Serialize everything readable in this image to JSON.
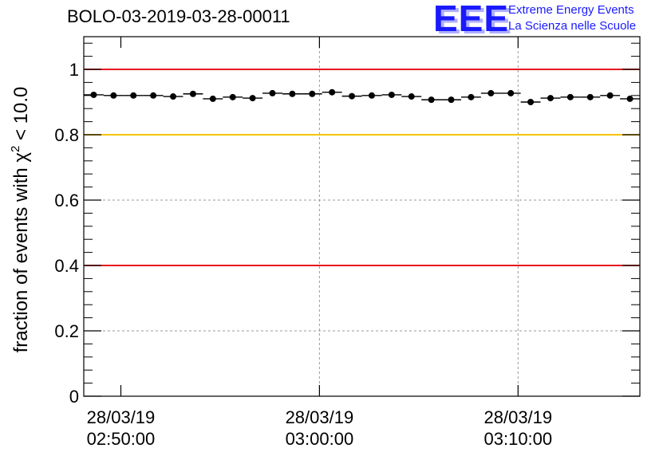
{
  "title": "BOLO-03-2019-03-28-00011",
  "logo": {
    "mark": "EEE",
    "line1": "Extreme Energy Events",
    "line2": "La Scienza nelle Scuole",
    "color": "#1a1aff"
  },
  "chart_data": {
    "type": "scatter",
    "ylabel": "fraction of events with χ² < 10.0",
    "ylim": [
      0,
      1.1
    ],
    "y_ticks": [
      "0",
      "0.2",
      "0.4",
      "0.6",
      "0.8",
      "1"
    ],
    "x_ticks": [
      {
        "date": "28/03/19",
        "time": "02:50:00"
      },
      {
        "date": "28/03/19",
        "time": "03:00:00"
      },
      {
        "date": "28/03/19",
        "time": "03:10:00"
      }
    ],
    "xlim": [
      "28/03/19 02:48:08",
      "28/03/19 03:16:08"
    ],
    "grid": true,
    "reference_lines": [
      {
        "value": 1.0,
        "color": "#e8161e"
      },
      {
        "value": 0.8,
        "color": "#f5c400"
      },
      {
        "value": 0.4,
        "color": "#e8161e"
      }
    ],
    "series": [
      {
        "marker_color": "#000000",
        "bin_width_minutes": 1,
        "points": [
          {
            "x": "02:48:38",
            "y": 0.922
          },
          {
            "x": "02:49:38",
            "y": 0.92
          },
          {
            "x": "02:50:38",
            "y": 0.92
          },
          {
            "x": "02:51:38",
            "y": 0.92
          },
          {
            "x": "02:52:38",
            "y": 0.917
          },
          {
            "x": "02:53:38",
            "y": 0.925
          },
          {
            "x": "02:54:38",
            "y": 0.91
          },
          {
            "x": "02:55:38",
            "y": 0.915
          },
          {
            "x": "02:56:38",
            "y": 0.912
          },
          {
            "x": "02:57:38",
            "y": 0.927
          },
          {
            "x": "02:58:38",
            "y": 0.925
          },
          {
            "x": "02:59:38",
            "y": 0.925
          },
          {
            "x": "03:00:38",
            "y": 0.93
          },
          {
            "x": "03:01:38",
            "y": 0.918
          },
          {
            "x": "03:02:38",
            "y": 0.92
          },
          {
            "x": "03:03:38",
            "y": 0.922
          },
          {
            "x": "03:04:38",
            "y": 0.917
          },
          {
            "x": "03:05:38",
            "y": 0.907
          },
          {
            "x": "03:06:38",
            "y": 0.907
          },
          {
            "x": "03:07:38",
            "y": 0.915
          },
          {
            "x": "03:08:38",
            "y": 0.927
          },
          {
            "x": "03:09:38",
            "y": 0.927
          },
          {
            "x": "03:10:38",
            "y": 0.9
          },
          {
            "x": "03:11:38",
            "y": 0.912
          },
          {
            "x": "03:12:38",
            "y": 0.915
          },
          {
            "x": "03:13:38",
            "y": 0.915
          },
          {
            "x": "03:14:38",
            "y": 0.92
          },
          {
            "x": "03:15:38",
            "y": 0.91
          }
        ]
      }
    ]
  }
}
